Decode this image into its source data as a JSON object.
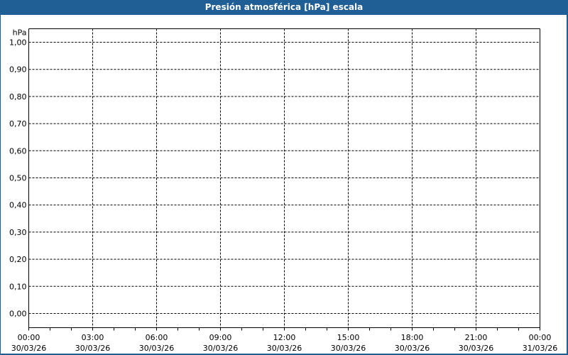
{
  "window": {
    "title": "Presión atmosférica [hPa] escala"
  },
  "chart_data": {
    "type": "line",
    "title": "Presión atmosférica [hPa] escala",
    "ylabel": "hPa",
    "ylim": [
      0,
      1.0
    ],
    "yticks": [
      "1,00",
      "0,90",
      "0,80",
      "0,70",
      "0,60",
      "0,50",
      "0,40",
      "0,30",
      "0,20",
      "0,10",
      "0,00"
    ],
    "ytick_values": [
      1.0,
      0.9,
      0.8,
      0.7,
      0.6,
      0.5,
      0.4,
      0.3,
      0.2,
      0.1,
      0.0
    ],
    "xlim": [
      "30/03/26 00:00",
      "31/03/26 00:00"
    ],
    "xticks": [
      {
        "time": "00:00",
        "date": "30/03/26"
      },
      {
        "time": "03:00",
        "date": "30/03/26"
      },
      {
        "time": "06:00",
        "date": "30/03/26"
      },
      {
        "time": "09:00",
        "date": "30/03/26"
      },
      {
        "time": "12:00",
        "date": "30/03/26"
      },
      {
        "time": "15:00",
        "date": "30/03/26"
      },
      {
        "time": "18:00",
        "date": "30/03/26"
      },
      {
        "time": "21:00",
        "date": "30/03/26"
      },
      {
        "time": "00:00",
        "date": "31/03/26"
      }
    ],
    "grid": true,
    "series": [],
    "colors": {
      "frame": "#1f5f96",
      "grid": "#000000"
    }
  }
}
